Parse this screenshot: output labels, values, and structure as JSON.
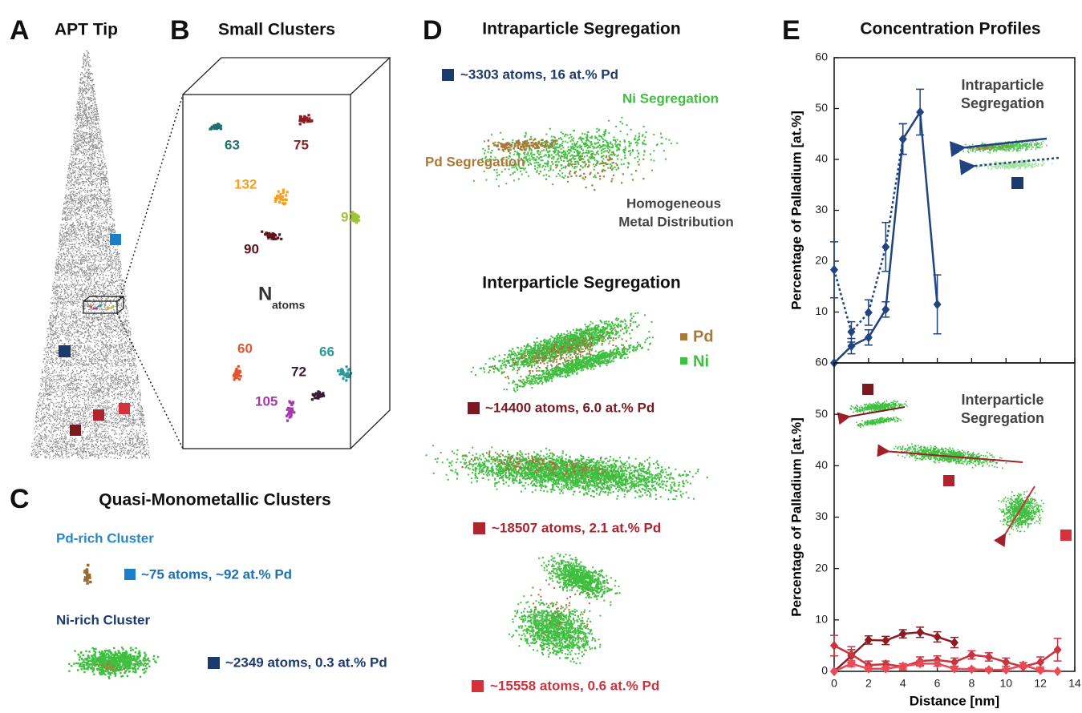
{
  "panels": {
    "A": {
      "letter": "A",
      "title": "APT Tip"
    },
    "B": {
      "letter": "B",
      "title": "Small Clusters",
      "axis_label": "N",
      "axis_label_sub": "atoms",
      "clusters": [
        "63",
        "75",
        "132",
        "93",
        "90",
        "60",
        "66",
        "72",
        "105"
      ]
    },
    "C": {
      "letter": "C",
      "title": "Quasi-Monometallic Clusters",
      "pd_rich": {
        "title": "Pd-rich Cluster",
        "caption": "~75 atoms, ~92 at.% Pd"
      },
      "ni_rich": {
        "title": "Ni-rich Cluster",
        "caption": "~2349 atoms, 0.3 at.% Pd"
      }
    },
    "D": {
      "letter": "D",
      "title": "Intraparticle Segregation",
      "caption_1": "~3303 atoms, 16 at.% Pd",
      "ni_segregation": "Ni Segregation",
      "pd_segregation": "Pd Segregation",
      "homogeneous": [
        "Homogeneous",
        "Metal Distribution"
      ],
      "title_2": "Interparticle Segregation",
      "legend": [
        "Pd",
        "Ni"
      ],
      "caption_2": "~14400 atoms, 6.0 at.% Pd",
      "caption_3": "~18507 atoms, 2.1 at.% Pd",
      "caption_4": "~15558 atoms, 0.6 at.% Pd"
    },
    "E": {
      "letter": "E",
      "title": "Concentration Profiles"
    }
  },
  "chart_data": [
    {
      "type": "line",
      "y_label": "Percentage of Palladium [at.%]",
      "annotation": [
        "Intraparticle",
        "Segregation"
      ],
      "x": [
        0,
        1,
        2,
        3,
        4,
        5,
        6
      ],
      "series": [
        {
          "color": "#1f4480",
          "line_style": "solid",
          "values": [
            0,
            3.3,
            5,
            10.5,
            44,
            49.3,
            11.5
          ],
          "errors": [
            0,
            1.5,
            1.5,
            1.5,
            3,
            4.5,
            5.8
          ]
        },
        {
          "color": "#1f4480",
          "line_style": "dotted",
          "values": [
            18.3,
            6.1,
            9.9,
            22.8,
            44,
            null,
            null
          ],
          "errors": [
            5.5,
            2,
            2.5,
            4.8,
            3,
            null,
            null
          ]
        }
      ],
      "xlim": [
        0,
        14
      ],
      "xticks": [
        0,
        2,
        4,
        6,
        8,
        10,
        12,
        14
      ],
      "ylim": [
        0,
        60
      ],
      "yticks": [
        10,
        20,
        30,
        40,
        50,
        60
      ]
    },
    {
      "type": "line",
      "y_label": "Percentage of Palladium [at.%]",
      "x_label": "Distance [nm]",
      "annotation": [
        "Interparticle",
        "Segregation"
      ],
      "x": [
        0,
        1,
        2,
        3,
        4,
        5,
        6,
        7,
        8,
        9,
        10,
        11,
        12,
        13
      ],
      "series": [
        {
          "color": "#8c1c24",
          "line_style": "solid",
          "values": [
            0,
            3,
            6.1,
            6,
            7.3,
            7.6,
            6.7,
            5.6,
            null,
            null,
            null,
            null,
            null,
            null
          ],
          "errors": [
            0,
            1.2,
            0.8,
            0.8,
            0.8,
            1,
            1,
            1,
            null,
            null,
            null,
            null,
            null,
            null
          ]
        },
        {
          "color": "#c9343e",
          "line_style": "solid",
          "values": [
            5,
            3.3,
            1.2,
            1.4,
            0.9,
            2,
            2.2,
            1.8,
            3.2,
            2.8,
            1.8,
            0.9,
            1.8,
            4.2
          ],
          "errors": [
            2,
            1.5,
            0.8,
            0.6,
            0.6,
            0.8,
            0.8,
            0.8,
            0.8,
            0.8,
            0.8,
            0.8,
            1,
            2.2
          ]
        },
        {
          "color": "#ea4a55",
          "line_style": "solid",
          "values": [
            0,
            1.5,
            0.5,
            0.5,
            1,
            1.5,
            1.5,
            0.5,
            0.4,
            0.3,
            0.3,
            1.2,
            0.2,
            0
          ],
          "errors": [
            0,
            0.6,
            0.4,
            0.4,
            0.4,
            0.5,
            0.5,
            0.4,
            0.3,
            0.3,
            0.3,
            0.5,
            0.3,
            0
          ]
        }
      ],
      "xlim": [
        0,
        14
      ],
      "xticks": [
        0,
        2,
        4,
        6,
        8,
        10,
        12,
        14
      ],
      "ylim": [
        0,
        60
      ],
      "yticks": [
        0,
        10,
        20,
        30,
        40,
        50,
        60
      ]
    }
  ]
}
